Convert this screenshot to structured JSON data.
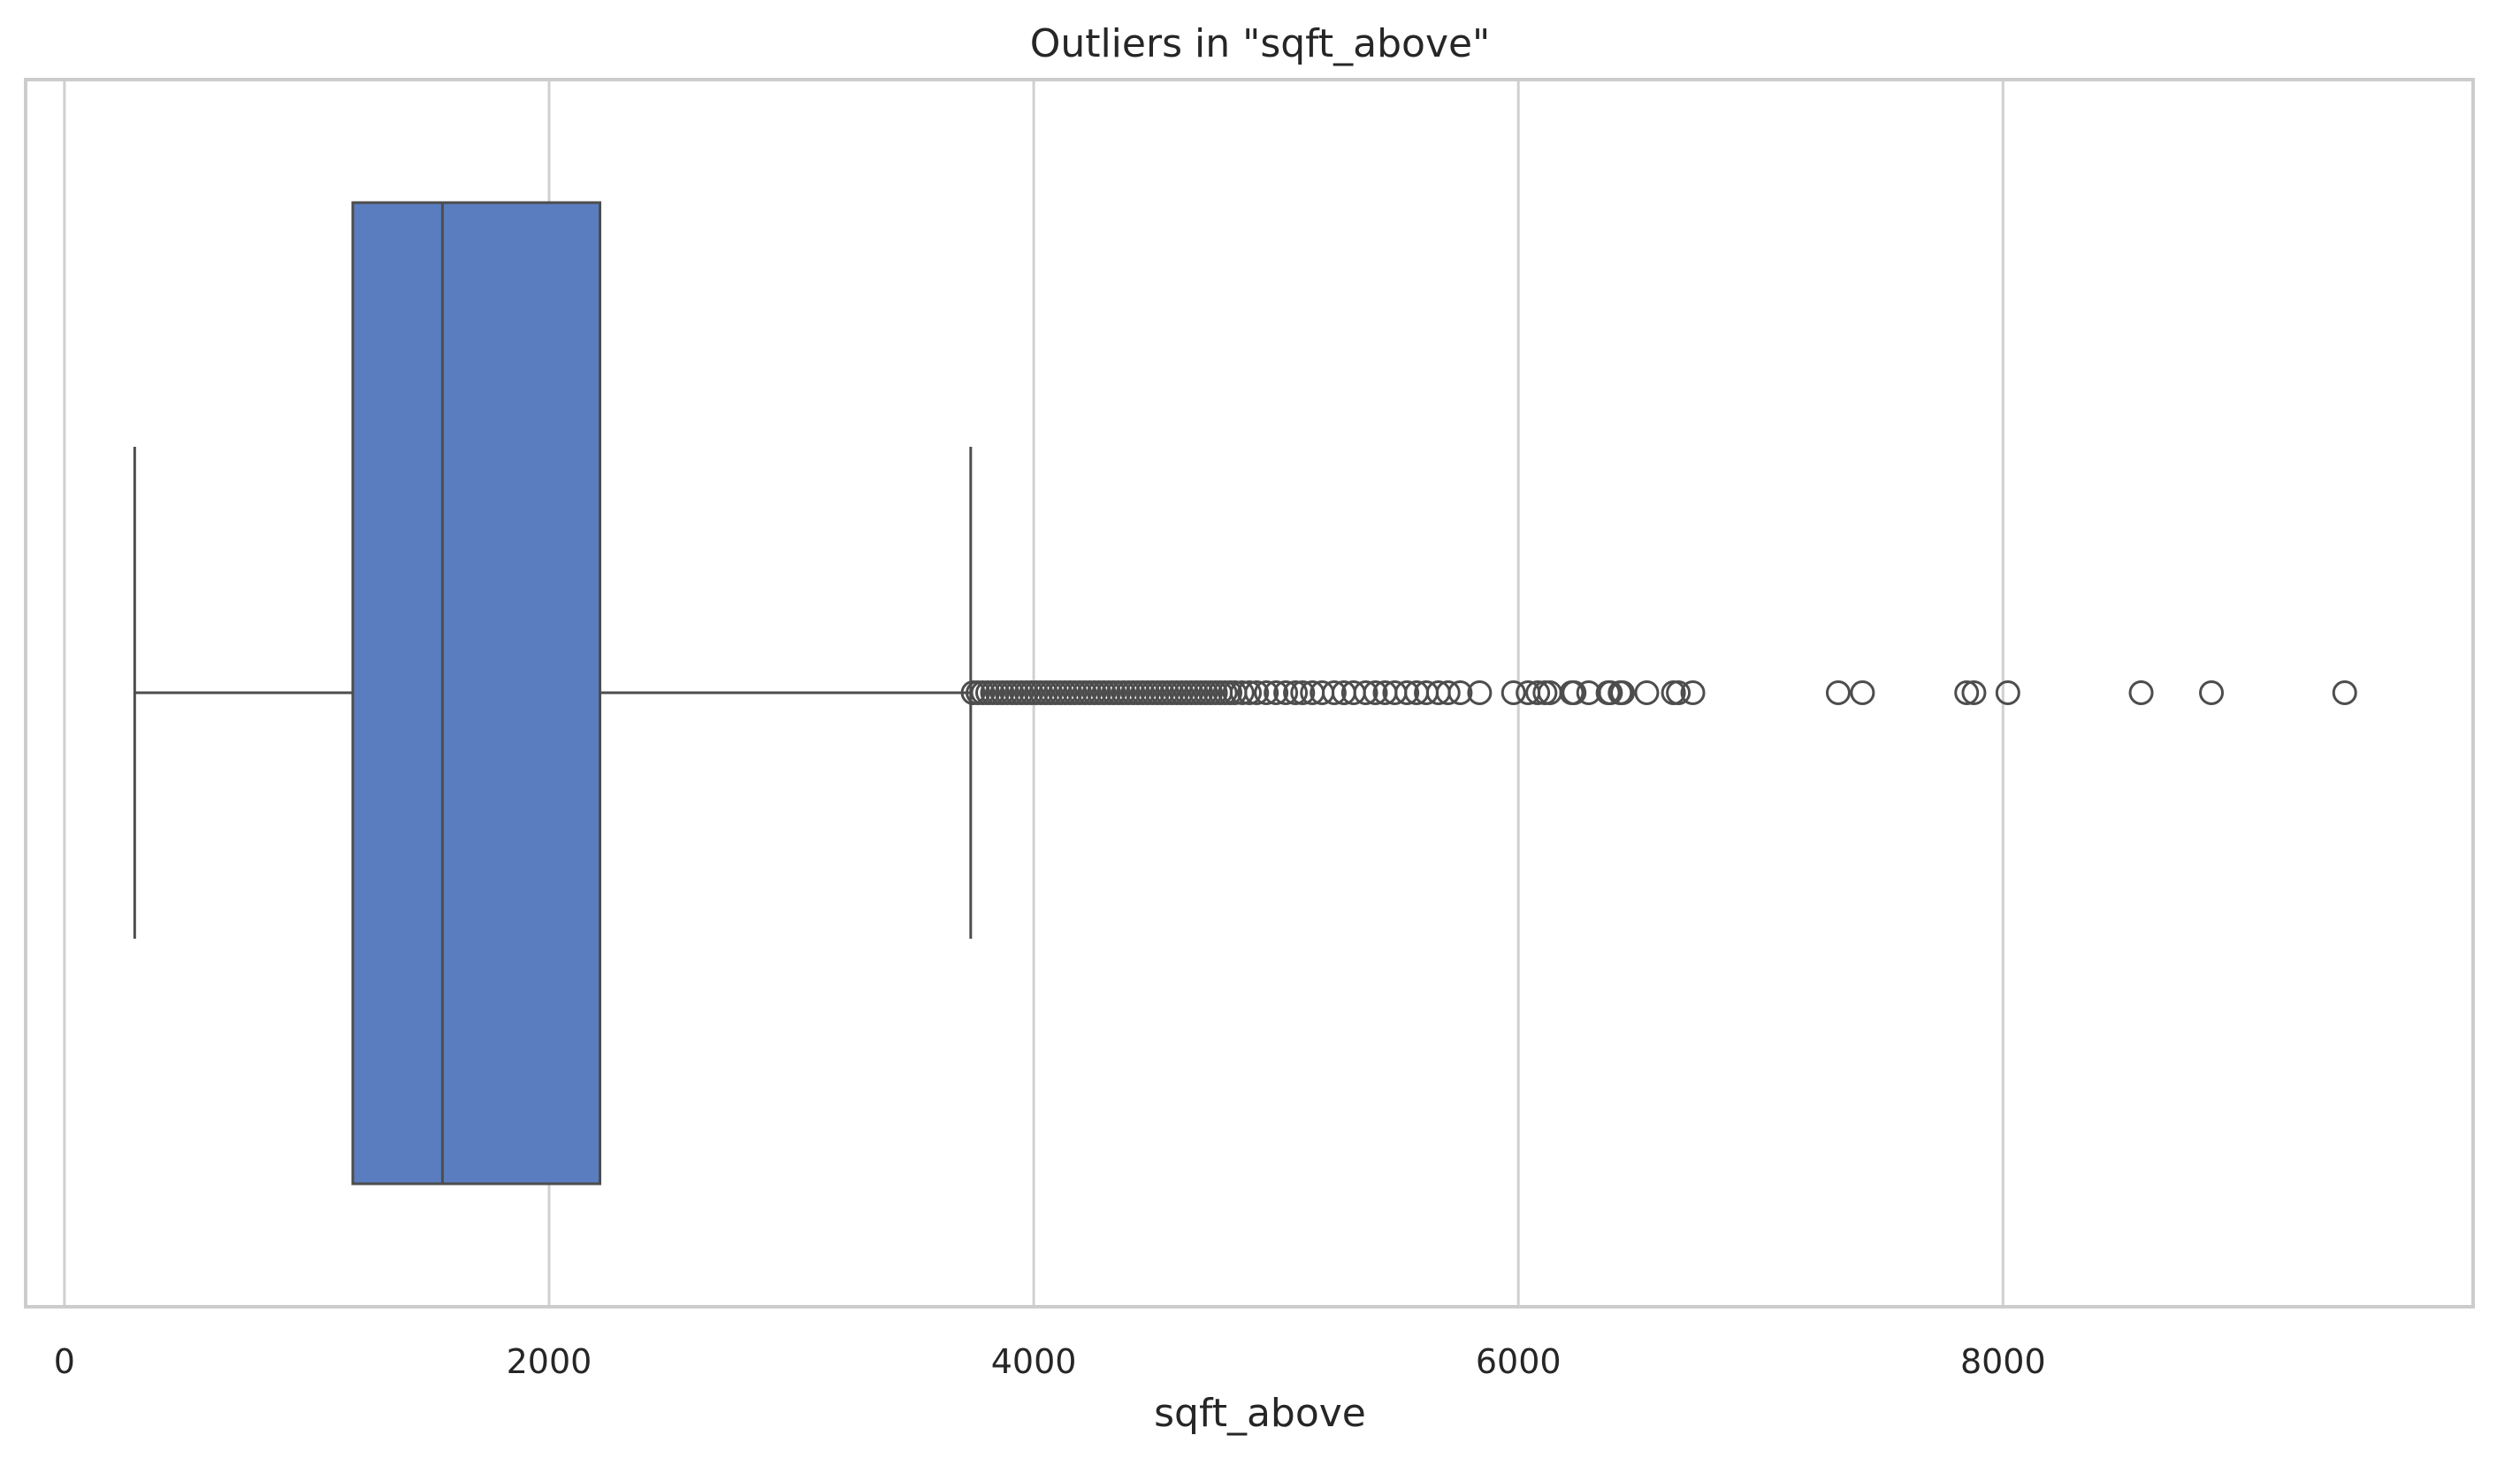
{
  "chart_data": {
    "type": "box",
    "title": "Outliers in \"sqft_above\"",
    "xlabel": "sqft_above",
    "ylabel": "",
    "orientation": "horizontal",
    "xlim": [
      -160,
      9940
    ],
    "xticks": [
      0,
      2000,
      4000,
      6000,
      8000
    ],
    "xtick_labels": [
      "0",
      "2000",
      "4000",
      "6000",
      "8000"
    ],
    "grid": true,
    "box": {
      "whisker_low": 290,
      "q1": 1190,
      "median": 1560,
      "q3": 2210,
      "whisker_high": 3740,
      "outliers": [
        3750,
        3770,
        3790,
        3810,
        3830,
        3850,
        3870,
        3890,
        3910,
        3930,
        3950,
        3970,
        3990,
        4010,
        4030,
        4050,
        4070,
        4090,
        4110,
        4130,
        4150,
        4170,
        4190,
        4210,
        4230,
        4250,
        4270,
        4290,
        4310,
        4330,
        4350,
        4370,
        4390,
        4410,
        4430,
        4450,
        4470,
        4490,
        4510,
        4530,
        4550,
        4570,
        4590,
        4610,
        4630,
        4650,
        4670,
        4690,
        4710,
        4730,
        4750,
        4770,
        4790,
        4810,
        4830,
        4860,
        4890,
        4920,
        4960,
        5000,
        5040,
        5080,
        5110,
        5150,
        5190,
        5240,
        5280,
        5320,
        5370,
        5410,
        5450,
        5490,
        5540,
        5580,
        5620,
        5670,
        5710,
        5760,
        5840,
        5980,
        6040,
        6080,
        6110,
        6130,
        6220,
        6230,
        6290,
        6370,
        6380,
        6420,
        6430,
        6530,
        6640,
        6660,
        6720,
        7320,
        7420,
        7850,
        7880,
        8020,
        8570,
        8860,
        9410
      ]
    },
    "colors": {
      "box_fill": "#5a7dbf",
      "line": "#4d4d4d",
      "grid": "#d0d0d0",
      "frame": "#cccccc",
      "text": "#262626"
    }
  }
}
